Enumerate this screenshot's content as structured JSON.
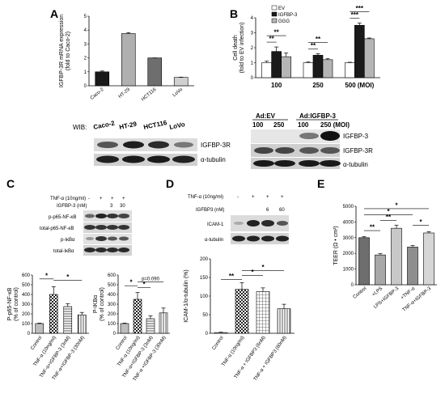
{
  "panels": {
    "A": {
      "letter": "A",
      "chart_data": {
        "type": "bar",
        "categories": [
          "Caco-2",
          "HT-29",
          "HCT116",
          "LoVo"
        ],
        "values": [
          1.0,
          3.75,
          2.0,
          0.6
        ],
        "errors": [
          0.06,
          0.07,
          0.0,
          0.02
        ],
        "colors": [
          "#1a1a1a",
          "#b0b0b0",
          "#6e6e6e",
          "#d0d0d0"
        ],
        "ylabel": "IGFBP-3R mRNA expression (fold to Caco-2)",
        "ylabel_lines": [
          "IGFBP-3R mRNA expression",
          "(fold to Caco-2)"
        ],
        "yticks": [
          "0",
          "1",
          "2",
          "3",
          "4",
          "5"
        ],
        "ylim": [
          0,
          5
        ]
      },
      "blot": {
        "wib_label": "WIB:",
        "lanes": [
          "Caco-2",
          "HT-29",
          "HCT116",
          "LoVo"
        ],
        "rows": [
          "IGFBP-3R",
          "α-tubulin"
        ]
      }
    },
    "B": {
      "letter": "B",
      "chart_data": {
        "type": "bar",
        "categories": [
          "100",
          "250",
          "500 (MOI)"
        ],
        "series": [
          {
            "name": "EV",
            "values": [
              1.0,
              1.0,
              1.0
            ],
            "errors": [
              0.1,
              0.05,
              0.03
            ],
            "color": "#ffffff"
          },
          {
            "name": "IGFBP-3",
            "values": [
              1.75,
              1.5,
              3.5
            ],
            "errors": [
              0.3,
              0.1,
              0.15
            ],
            "color": "#1a1a1a"
          },
          {
            "name": "GGG",
            "values": [
              1.4,
              1.2,
              2.6
            ],
            "errors": [
              0.25,
              0.08,
              0.05
            ],
            "color": "#b5b5b5"
          }
        ],
        "ylabel": "Cell death (fold to EV infection)",
        "ylabel_lines": [
          "Cell death",
          "(fold to EV infection)"
        ],
        "yticks": [
          "0",
          "1",
          "2",
          "3",
          "4"
        ],
        "ylim": [
          0,
          4
        ],
        "significance": [
          {
            "label": "**",
            "group": 0
          },
          {
            "label": "**",
            "group": 0
          },
          {
            "label": "**",
            "group": 1
          },
          {
            "label": "**",
            "group": 1
          },
          {
            "label": "***",
            "group": 2
          },
          {
            "label": "***",
            "group": 2
          }
        ],
        "legend_position": "top-left"
      },
      "blot": {
        "groups": [
          "Ad:EV",
          "Ad:IGFBP-3"
        ],
        "lanes": [
          "100",
          "250",
          "100",
          "250 (MOI)"
        ],
        "rows": [
          "IGFBP-3",
          "IGFBP-3R",
          "α-tubulin"
        ]
      }
    },
    "C": {
      "letter": "C",
      "treatment_rows": [
        "TNF-α (10ng/ml)",
        "IGFBP-3 (nM)"
      ],
      "treatment_values": [
        [
          "-",
          "+",
          "+",
          "+"
        ],
        [
          "",
          "",
          "3",
          "30"
        ]
      ],
      "blot_rows": [
        "p-p65-NF-κB",
        "total-p65-NF-κB",
        "p-IκBα",
        "total-IκBα"
      ],
      "charts": [
        {
          "type": "bar",
          "categories": [
            "Control",
            "TNF-α (10ng/ml)",
            "TNF-α+IGFBP-3 (3nM)",
            "TNF-α+IGFBP-3 (30nM)"
          ],
          "values": [
            100,
            400,
            275,
            190
          ],
          "errors": [
            5,
            80,
            30,
            25
          ],
          "ylabel": "P-p65-NF-κB (% of control)",
          "ylabel_lines": [
            "P-p65-NF-κB",
            "(% of control)"
          ],
          "yticks": [
            "0",
            "100",
            "200",
            "300",
            "400",
            "500",
            "600"
          ],
          "ylim": [
            0,
            600
          ],
          "significance": [
            "*",
            "*"
          ]
        },
        {
          "type": "bar",
          "categories": [
            "Control",
            "TNF-α (10ng/ml)",
            "TNF-α+IGFBP-3 (3nM)",
            "TNF-α +IGFBP-3 (30nM)"
          ],
          "values": [
            100,
            350,
            150,
            210
          ],
          "errors": [
            5,
            70,
            30,
            50
          ],
          "ylabel": "P-IKBα (% of control)",
          "ylabel_lines": [
            "P-IKBα",
            "(% of control)"
          ],
          "yticks": [
            "0",
            "100",
            "200",
            "300",
            "400",
            "500",
            "600"
          ],
          "ylim": [
            0,
            600
          ],
          "significance": [
            "*",
            "*"
          ],
          "annotation": "p=0.090"
        }
      ]
    },
    "D": {
      "letter": "D",
      "treatment_rows": [
        "TNF-α (10ng/ml)",
        "IGFBP3 (nM)"
      ],
      "treatment_values": [
        [
          "-",
          "+",
          "+",
          "+"
        ],
        [
          "",
          "",
          "6",
          "60"
        ]
      ],
      "blot_rows": [
        "ICAM-1",
        "α-tubulin"
      ],
      "chart_data": {
        "type": "bar",
        "categories": [
          "Control",
          "TNF-α (10ng/ml)",
          "TNF-α + IGFBP3 (6nM)",
          "TNF-α + IGFBP3 (60nM)"
        ],
        "values": [
          2,
          118,
          112,
          66
        ],
        "errors": [
          1,
          18,
          10,
          12
        ],
        "ylabel": "ICAM-1/α-tubulin (%)",
        "yticks": [
          "0",
          "50",
          "100",
          "150",
          "200"
        ],
        "ylim": [
          0,
          200
        ],
        "significance": [
          "**",
          "*",
          "*"
        ]
      }
    },
    "E": {
      "letter": "E",
      "chart_data": {
        "type": "bar",
        "categories": [
          "Control",
          "+LPS",
          "LPS+IGFBP-3",
          "+TNF-α",
          "TNF-α+IGFBP-3"
        ],
        "values": [
          3000,
          1900,
          3600,
          2400,
          3300
        ],
        "errors": [
          60,
          80,
          200,
          100,
          80
        ],
        "colors": [
          "#6e6e6e",
          "#a8a8a8",
          "#c8c8c8",
          "#8e8e8e",
          "#d6d6d6"
        ],
        "ylabel": "TEER (Ω • cm²)",
        "yticks": [
          "0",
          "1000",
          "2000",
          "3000",
          "4000",
          "5000"
        ],
        "ylim": [
          0,
          5000
        ],
        "significance": [
          "**",
          "**",
          "*",
          "*",
          "*"
        ]
      }
    }
  }
}
